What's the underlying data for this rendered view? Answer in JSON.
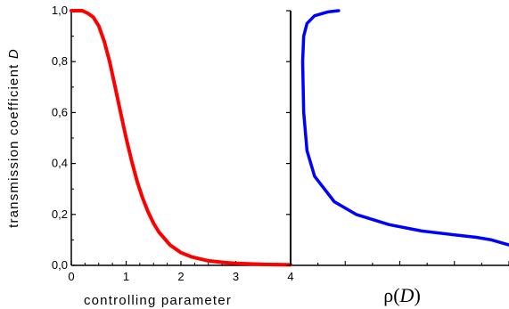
{
  "chart_data": [
    {
      "type": "line",
      "xlabel": "controlling parameter",
      "ylabel": "transmission coefficient D",
      "ylabel_main": "transmission coefficient ",
      "ylabel_var": "D",
      "xlim": [
        0,
        4
      ],
      "ylim": [
        0,
        1
      ],
      "xticks": [
        "0",
        "1",
        "2",
        "3",
        "4"
      ],
      "yticks": [
        "0,0",
        "0,2",
        "0,4",
        "0,6",
        "0,8",
        "1,0"
      ],
      "grid": false,
      "series": [
        {
          "color": "#ff0000",
          "x": [
            0,
            0.2,
            0.3,
            0.4,
            0.5,
            0.6,
            0.7,
            0.8,
            0.9,
            1.0,
            1.1,
            1.2,
            1.3,
            1.4,
            1.5,
            1.6,
            1.8,
            2.0,
            2.2,
            2.5,
            2.8,
            3.0,
            3.5,
            4.0
          ],
          "y": [
            1.0,
            1.0,
            0.99,
            0.975,
            0.94,
            0.88,
            0.8,
            0.7,
            0.6,
            0.5,
            0.41,
            0.33,
            0.265,
            0.21,
            0.165,
            0.13,
            0.08,
            0.05,
            0.033,
            0.018,
            0.011,
            0.008,
            0.004,
            0.002
          ]
        }
      ]
    },
    {
      "type": "line",
      "xlabel": "ρ(D)",
      "xlabel_main": "ρ(",
      "xlabel_var": "D",
      "xlabel_end": ")",
      "xlim": [
        0,
        1
      ],
      "ylim": [
        0,
        1
      ],
      "grid": false,
      "series": [
        {
          "color": "#0000ff",
          "x": [
            0.22,
            0.17,
            0.11,
            0.075,
            0.06,
            0.055,
            0.06,
            0.075,
            0.11,
            0.2,
            0.3,
            0.45,
            0.6,
            0.75,
            0.85,
            0.92,
            1.0
          ],
          "y": [
            1.0,
            0.995,
            0.98,
            0.95,
            0.9,
            0.8,
            0.6,
            0.45,
            0.35,
            0.25,
            0.2,
            0.16,
            0.135,
            0.12,
            0.11,
            0.1,
            0.08
          ]
        }
      ]
    }
  ],
  "colors": {
    "axis": "#000000",
    "left_curve": "#ff0000",
    "right_curve": "#0000ff"
  }
}
